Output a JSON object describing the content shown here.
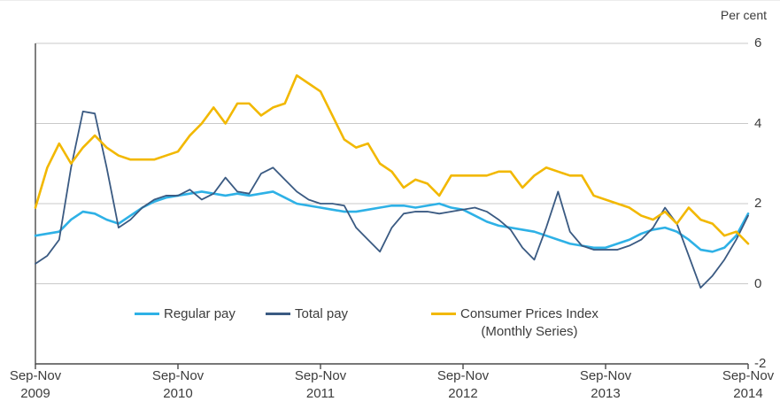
{
  "header": {
    "unit_label": "Per cent"
  },
  "colors": {
    "regular_pay": "#2eb1e6",
    "total_pay": "#3a5a82",
    "cpi": "#f2b800",
    "grid": "#c9c9c9",
    "axis": "#4a4a4a",
    "text": "#3c3c3c"
  },
  "chart_data": {
    "type": "line",
    "title": "",
    "xlabel": "",
    "ylabel": "Per cent",
    "ylim": [
      -2,
      6
    ],
    "yticks": [
      6,
      4,
      2,
      0,
      -2
    ],
    "grid": "horizontal",
    "legend_position": "bottom-inside",
    "points_per_series": 61,
    "x_ticks": [
      {
        "period": "Sep-Nov",
        "year": "2009"
      },
      {
        "period": "Sep-Nov",
        "year": "2010"
      },
      {
        "period": "Sep-Nov",
        "year": "2011"
      },
      {
        "period": "Sep-Nov",
        "year": "2012"
      },
      {
        "period": "Sep-Nov",
        "year": "2013"
      },
      {
        "period": "Sep-Nov",
        "year": "2014"
      }
    ],
    "series": [
      {
        "name": "Regular pay",
        "color": "#2eb1e6",
        "line_width": 2.6,
        "values": [
          1.2,
          1.25,
          1.3,
          1.6,
          1.8,
          1.75,
          1.6,
          1.5,
          1.7,
          1.9,
          2.05,
          2.15,
          2.2,
          2.25,
          2.3,
          2.25,
          2.2,
          2.25,
          2.2,
          2.25,
          2.3,
          2.15,
          2.0,
          1.95,
          1.9,
          1.85,
          1.8,
          1.8,
          1.85,
          1.9,
          1.95,
          1.95,
          1.9,
          1.95,
          2.0,
          1.9,
          1.85,
          1.7,
          1.55,
          1.45,
          1.4,
          1.35,
          1.3,
          1.2,
          1.1,
          1.0,
          0.95,
          0.9,
          0.9,
          1.0,
          1.1,
          1.25,
          1.35,
          1.4,
          1.3,
          1.1,
          0.85,
          0.8,
          0.9,
          1.2,
          1.75
        ]
      },
      {
        "name": "Total pay",
        "color": "#3a5a82",
        "line_width": 1.8,
        "values": [
          0.5,
          0.7,
          1.1,
          2.9,
          4.3,
          4.25,
          2.9,
          1.4,
          1.6,
          1.9,
          2.1,
          2.2,
          2.2,
          2.35,
          2.1,
          2.25,
          2.65,
          2.3,
          2.25,
          2.75,
          2.9,
          2.6,
          2.3,
          2.1,
          2.0,
          2.0,
          1.95,
          1.4,
          1.1,
          0.8,
          1.4,
          1.75,
          1.8,
          1.8,
          1.75,
          1.8,
          1.85,
          1.9,
          1.8,
          1.6,
          1.35,
          0.9,
          0.6,
          1.4,
          2.3,
          1.3,
          0.95,
          0.85,
          0.85,
          0.85,
          0.95,
          1.1,
          1.4,
          1.9,
          1.5,
          0.7,
          -0.1,
          0.2,
          0.6,
          1.1,
          1.7
        ]
      },
      {
        "name": "Consumer Prices Index",
        "name_line2": "(Monthly Series)",
        "color": "#f2b800",
        "line_width": 2.6,
        "values": [
          1.9,
          2.9,
          3.5,
          3.0,
          3.4,
          3.7,
          3.4,
          3.2,
          3.1,
          3.1,
          3.1,
          3.2,
          3.3,
          3.7,
          4.0,
          4.4,
          4.0,
          4.5,
          4.5,
          4.2,
          4.4,
          4.5,
          5.2,
          5.0,
          4.8,
          4.2,
          3.6,
          3.4,
          3.5,
          3.0,
          2.8,
          2.4,
          2.6,
          2.5,
          2.2,
          2.7,
          2.7,
          2.7,
          2.7,
          2.8,
          2.8,
          2.4,
          2.7,
          2.9,
          2.8,
          2.7,
          2.7,
          2.2,
          2.1,
          2.0,
          1.9,
          1.7,
          1.6,
          1.8,
          1.5,
          1.9,
          1.6,
          1.5,
          1.2,
          1.3,
          1.0
        ]
      }
    ]
  }
}
